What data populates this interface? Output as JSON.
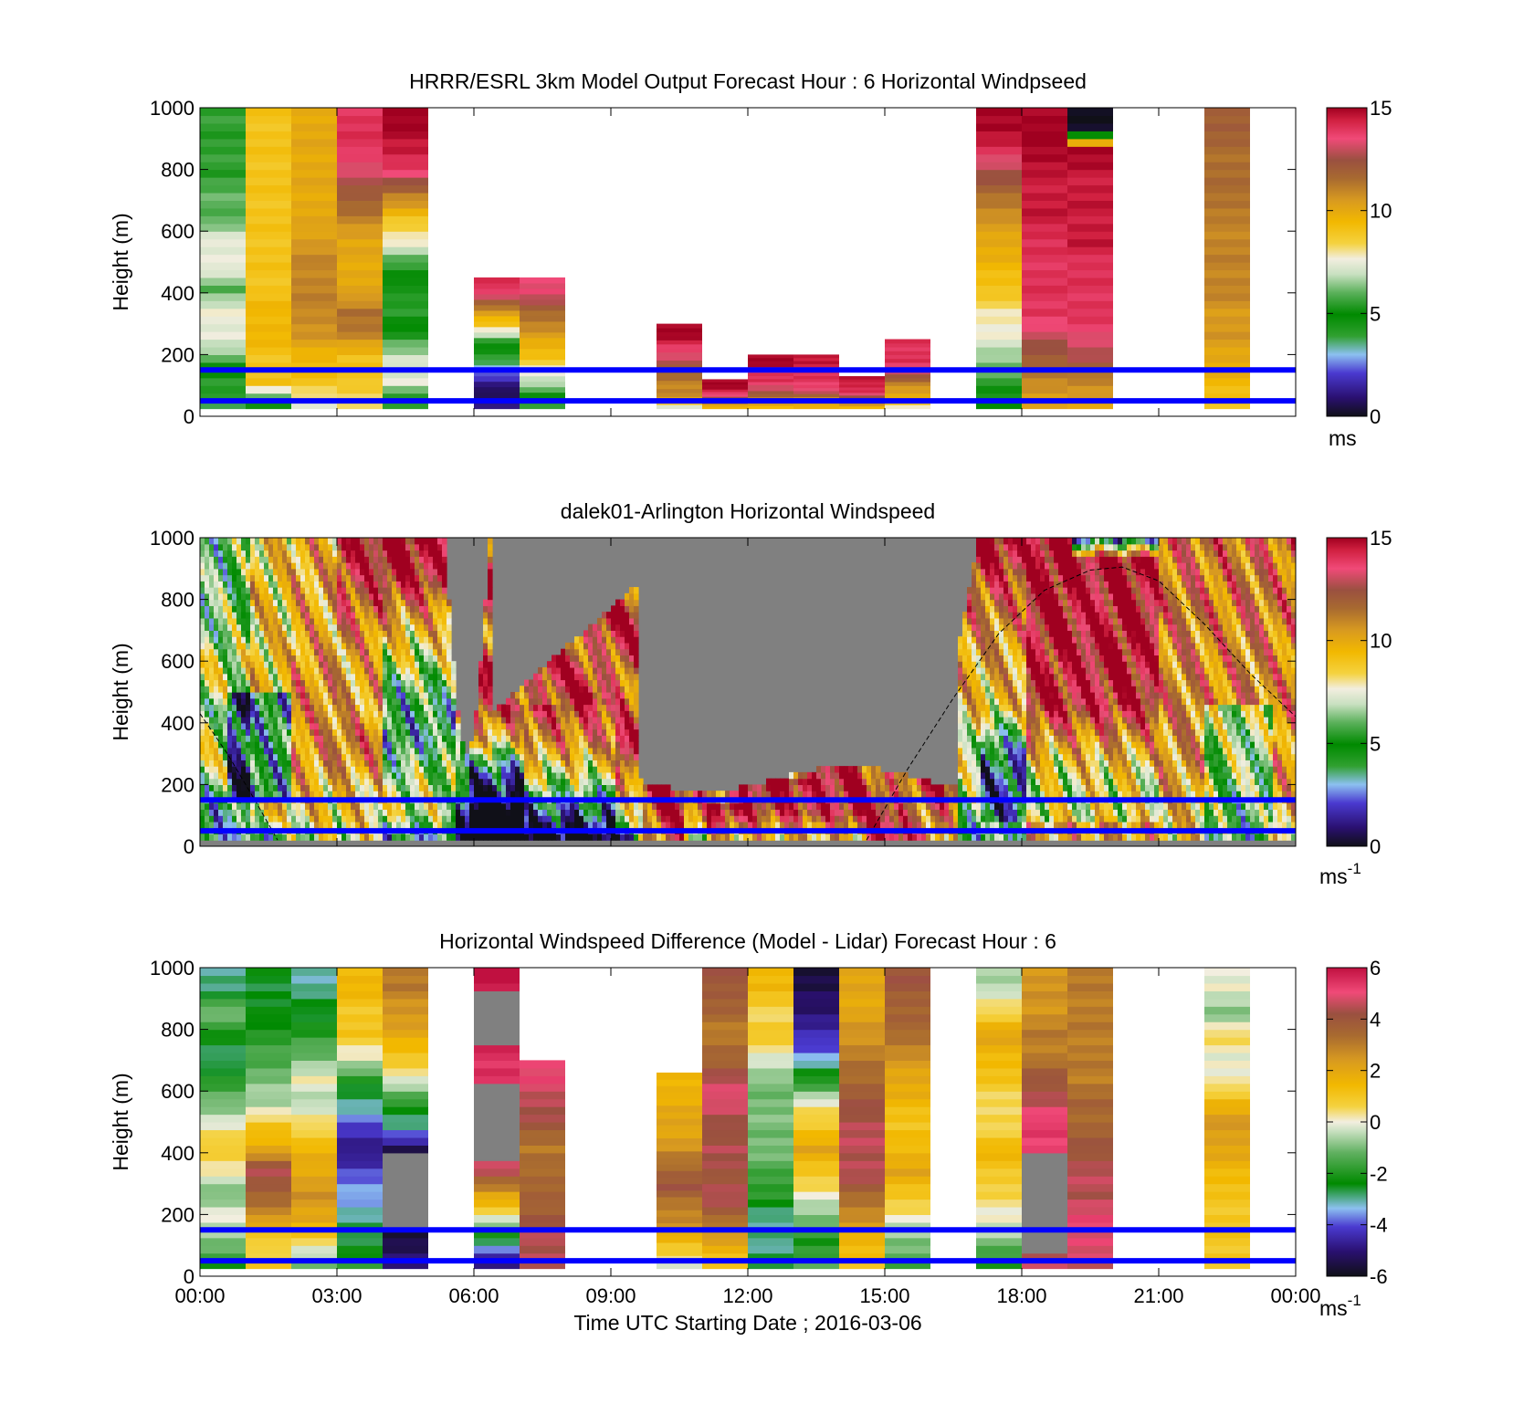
{
  "figure": {
    "xlabel": "Time UTC  Starting Date ; 2016-03-06",
    "xticks": [
      "00:00",
      "03:00",
      "06:00",
      "09:00",
      "12:00",
      "15:00",
      "18:00",
      "21:00",
      "00:00"
    ],
    "xlim_hours": [
      0,
      24
    ],
    "reference_lines_m": [
      150,
      50
    ],
    "reference_line_color": "#0000ff"
  },
  "chart_data": [
    {
      "type": "heatmap",
      "title": "HRRR/ESRL 3km Model Output   Forecast Hour : 6 Horizontal Windpseed",
      "ylabel": "Height (m)",
      "ylim": [
        0,
        1000
      ],
      "yticks": [
        "1000",
        "800",
        "600",
        "400",
        "200",
        "0"
      ],
      "colorbar": {
        "min": 0,
        "max": 15,
        "ticks": [
          "15",
          "10",
          "5",
          "0"
        ],
        "unit_label": "ms"
      },
      "columns": [
        {
          "t0": 0,
          "t1": 1,
          "top": 1000,
          "bottom": 25,
          "speeds": [
            4,
            4,
            6,
            7.5,
            7.5,
            6,
            7.5,
            7.5,
            6,
            6,
            5.5,
            5.5,
            5.5
          ]
        },
        {
          "t0": 1,
          "t1": 2,
          "top": 1000,
          "bottom": 25,
          "speeds": [
            5,
            9,
            9,
            9.5,
            9.5,
            9,
            9,
            9,
            9,
            9,
            9,
            9,
            9
          ]
        },
        {
          "t0": 2,
          "t1": 3,
          "top": 1000,
          "bottom": 25,
          "speeds": [
            7.5,
            9,
            9.5,
            10.5,
            11,
            11,
            11,
            10.5,
            10,
            10,
            10,
            10,
            10
          ]
        },
        {
          "t0": 3,
          "t1": 4,
          "top": 1000,
          "bottom": 25,
          "speeds": [
            8,
            9,
            9,
            11,
            11.5,
            10,
            10,
            10,
            11,
            12,
            13,
            14,
            14
          ]
        },
        {
          "t0": 4,
          "t1": 5,
          "top": 1000,
          "bottom": 25,
          "speeds": [
            4,
            7.5,
            7,
            5.5,
            4,
            4.5,
            5.5,
            7.5,
            9,
            11,
            13.5,
            14.5,
            15
          ]
        },
        {
          "t0": 6,
          "t1": 7,
          "top": 450,
          "bottom": 25,
          "speeds": [
            1,
            0.5,
            2.5,
            4,
            5.5,
            9,
            11,
            14
          ]
        },
        {
          "t0": 7,
          "t1": 8,
          "top": 450,
          "bottom": 25,
          "speeds": [
            4,
            6,
            7.5,
            9,
            10,
            11,
            12,
            13.5
          ]
        },
        {
          "t0": 10,
          "t1": 11,
          "top": 300,
          "bottom": 25,
          "speeds": [
            7.5,
            11,
            11,
            12,
            13,
            14,
            15
          ]
        },
        {
          "t0": 11,
          "t1": 12,
          "top": 120,
          "bottom": 25,
          "speeds": [
            9.5,
            12,
            14,
            15
          ]
        },
        {
          "t0": 12,
          "t1": 13,
          "top": 200,
          "bottom": 25,
          "speeds": [
            9.5,
            11,
            13,
            14,
            14,
            15
          ]
        },
        {
          "t0": 13,
          "t1": 14,
          "top": 200,
          "bottom": 25,
          "speeds": [
            9.5,
            11,
            13.5,
            14,
            14,
            14.5
          ]
        },
        {
          "t0": 14,
          "t1": 15,
          "top": 130,
          "bottom": 25,
          "speeds": [
            9.5,
            12,
            14,
            14.5
          ]
        },
        {
          "t0": 15,
          "t1": 16,
          "top": 250,
          "bottom": 25,
          "speeds": [
            8,
            10,
            11,
            13,
            14,
            14
          ]
        },
        {
          "t0": 17,
          "t1": 18,
          "top": 1000,
          "bottom": 25,
          "speeds": [
            5,
            5.5,
            6.5,
            7.5,
            8,
            9,
            9.5,
            10,
            10.5,
            11.5,
            12.5,
            14,
            15
          ]
        },
        {
          "t0": 18,
          "t1": 19,
          "top": 1000,
          "bottom": 25,
          "speeds": [
            10,
            11,
            12,
            13,
            14,
            14,
            14,
            14,
            14.5,
            14.5,
            14.5,
            15,
            15
          ]
        },
        {
          "t0": 19,
          "t1": 20,
          "top": 1000,
          "bottom": 25,
          "speeds": [
            10,
            11,
            12.5,
            13.5,
            14,
            14,
            14,
            14.5,
            14.5,
            14.5,
            14.5,
            15,
            0
          ]
        },
        {
          "t0": 22,
          "t1": 23,
          "top": 1000,
          "bottom": 25,
          "speeds": [
            9,
            9.5,
            10,
            10.5,
            10.5,
            11,
            11,
            11,
            11,
            11.5,
            11.5,
            11.5,
            12
          ]
        }
      ]
    },
    {
      "type": "heatmap",
      "title": "dalek01-Arlington  Horizontal Windspeed",
      "ylabel": "Height (m)",
      "ylim": [
        0,
        1000
      ],
      "yticks": [
        "1000",
        "800",
        "600",
        "400",
        "200",
        "0"
      ],
      "colorbar": {
        "min": 0,
        "max": 15,
        "ticks": [
          "15",
          "10",
          "5",
          "0"
        ],
        "unit_label": "ms",
        "unit_exponent": "-1"
      },
      "boundary_layer_height_m": [
        [
          0,
          430
        ],
        [
          0.6,
          300
        ],
        [
          1.2,
          150
        ],
        [
          1.7,
          20
        ],
        [
          14.6,
          20
        ],
        [
          15.5,
          250
        ],
        [
          16.5,
          480
        ],
        [
          17.5,
          690
        ],
        [
          18.5,
          830
        ],
        [
          19.5,
          895
        ],
        [
          20.2,
          905
        ],
        [
          21,
          860
        ],
        [
          22,
          720
        ],
        [
          23,
          560
        ],
        [
          24,
          420
        ]
      ],
      "data_gaps_hours": [
        [
          9.5,
          10.5
        ],
        [
          14.5,
          16.2
        ]
      ]
    },
    {
      "type": "heatmap",
      "title": "Horizontal Windspeed Difference (Model - Lidar) Forecast Hour : 6",
      "ylabel": "Height (m)",
      "ylim": [
        0,
        1000
      ],
      "yticks": [
        "1000",
        "800",
        "600",
        "400",
        "200",
        "0"
      ],
      "colorbar": {
        "min": -6,
        "max": 6,
        "ticks": [
          "6",
          "4",
          "2",
          "0",
          "-2",
          "-4",
          "-6"
        ],
        "unit_label": "ms",
        "unit_exponent": "-1"
      },
      "columns": [
        {
          "t0": 0,
          "t1": 1,
          "top": 1000,
          "bottom": 25,
          "diffs": [
            -2,
            -1,
            0,
            -1,
            0,
            1,
            0,
            -1,
            -2,
            -3,
            -2,
            -1,
            -3
          ]
        },
        {
          "t0": 1,
          "t1": 2,
          "top": 1000,
          "bottom": 25,
          "diffs": [
            1,
            0.5,
            2.5,
            3.5,
            4.5,
            2,
            1,
            -0.5,
            -1,
            -1.5,
            -2,
            -2.5,
            -2.5
          ]
        },
        {
          "t0": 2,
          "t1": 3,
          "top": 1000,
          "bottom": 25,
          "diffs": [
            -1,
            0.5,
            2,
            2.5,
            2,
            1.5,
            0.5,
            -0.5,
            0,
            -1,
            -2,
            -2.5,
            -3
          ]
        },
        {
          "t0": 3,
          "t1": 4,
          "top": 1000,
          "bottom": 25,
          "diffs": [
            -2,
            -2.5,
            -3,
            -3.5,
            -4,
            -5,
            -4,
            -3,
            -2,
            0,
            1,
            1,
            1.5
          ]
        },
        {
          "t0": 4,
          "t1": 5,
          "top": 1000,
          "bottom": 25,
          "diffs": [
            -5,
            -5.5,
            "gap",
            "gap",
            "gap",
            -5.5,
            -3,
            -2,
            0,
            1,
            2,
            2.5,
            3
          ]
        },
        {
          "t0": 6,
          "t1": 7,
          "top": 1000,
          "bottom": 25,
          "diffs": [
            -5,
            -3,
            0,
            2,
            4.5,
            "gap",
            "gap",
            "gap",
            5.5,
            5.5,
            "gap",
            "gap",
            6
          ]
        },
        {
          "t0": 7,
          "t1": 8,
          "top": 700,
          "bottom": 25,
          "diffs": [
            4.5,
            4.5,
            4,
            3.5,
            3.5,
            3,
            4,
            4.5,
            5
          ]
        },
        {
          "t0": 10,
          "t1": 11,
          "top": 660,
          "bottom": 25,
          "diffs": [
            0,
            1,
            2.5,
            3,
            4,
            3.5,
            2.5,
            2,
            2,
            1.5
          ]
        },
        {
          "t0": 11,
          "t1": 12,
          "top": 1000,
          "bottom": 25,
          "diffs": [
            1,
            2,
            3.5,
            4.5,
            4,
            4.5,
            4,
            5,
            4.5,
            3.5,
            3,
            3.5,
            4
          ]
        },
        {
          "t0": 12,
          "t1": 13,
          "top": 1000,
          "bottom": 25,
          "diffs": [
            -2.5,
            -3,
            -3,
            -2,
            -1.5,
            -1,
            -1,
            -1,
            -1,
            0,
            1,
            0.5,
            1.5
          ]
        },
        {
          "t0": 13,
          "t1": 14,
          "top": 1000,
          "bottom": 25,
          "diffs": [
            -1.5,
            -2,
            -1,
            0,
            1,
            2,
            1,
            0,
            -2,
            -3.5,
            -4.5,
            -5,
            -5.5
          ]
        },
        {
          "t0": 14,
          "t1": 15,
          "top": 1000,
          "bottom": 25,
          "diffs": [
            1,
            1.5,
            2.5,
            3.5,
            4.5,
            4.5,
            4.5,
            4,
            3.5,
            3,
            2.5,
            2,
            2
          ]
        },
        {
          "t0": 15,
          "t1": 16,
          "top": 1000,
          "bottom": 25,
          "diffs": [
            -1.5,
            -1,
            0,
            1,
            2,
            1.5,
            1,
            1.5,
            2,
            2.5,
            3.5,
            3.5,
            4
          ]
        },
        {
          "t0": 17,
          "t1": 18,
          "top": 1000,
          "bottom": 25,
          "diffs": [
            -2,
            -1,
            0,
            0.5,
            1,
            1.5,
            0.5,
            0.5,
            1,
            1.5,
            2,
            0.5,
            -0.5
          ]
        },
        {
          "t0": 18,
          "t1": 19,
          "top": 1000,
          "bottom": 25,
          "diffs": [
            4.5,
            "gap",
            "gap",
            "gap",
            "gap",
            5,
            5.5,
            4.5,
            4,
            3,
            3,
            2.5,
            2.5
          ]
        },
        {
          "t0": 19,
          "t1": 20,
          "top": 1000,
          "bottom": 25,
          "diffs": [
            4.5,
            5,
            5,
            4.5,
            4.5,
            4,
            3.5,
            3.5,
            3,
            3,
            3,
            3,
            3
          ]
        },
        {
          "t0": 22,
          "t1": 23,
          "top": 1000,
          "bottom": 25,
          "diffs": [
            1,
            1,
            1,
            1,
            1.5,
            2,
            2.5,
            1.5,
            0,
            0,
            0.5,
            -1,
            0
          ]
        }
      ]
    }
  ]
}
